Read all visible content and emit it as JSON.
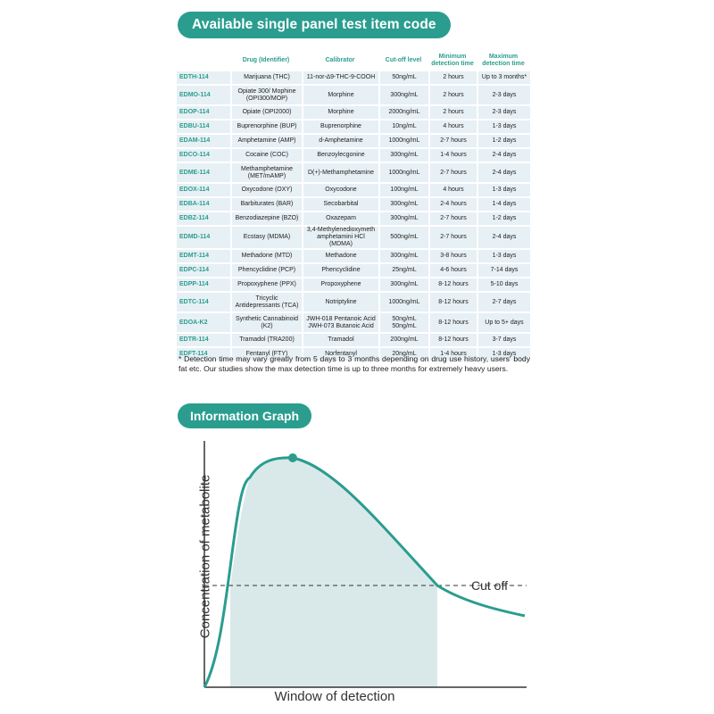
{
  "table_section": {
    "title": "Available single panel test item code",
    "headers": [
      "",
      "Drug (Identifier)",
      "Calibrator",
      "Cut-off level",
      "Minimum detection time",
      "Maximum detection time"
    ],
    "rows": [
      {
        "code": "EDTH-114",
        "drug": "Marijuana (THC)",
        "calibrator": "11-nor-∆9-THC-9-COOH",
        "cutoff": "50ng/mL",
        "min": "2 hours",
        "max": "Up to 3 months*"
      },
      {
        "code": "EDMO-114",
        "drug": "Opiate 300/ Mophine (OPI300/MOP)",
        "calibrator": "Morphine",
        "cutoff": "300ng/mL",
        "min": "2 hours",
        "max": "2-3 days"
      },
      {
        "code": "EDOP-114",
        "drug": "Opiate (OPI2000)",
        "calibrator": "Morphine",
        "cutoff": "2000ng/mL",
        "min": "2 hours",
        "max": "2-3 days"
      },
      {
        "code": "EDBU-114",
        "drug": "Buprenorphine (BUP)",
        "calibrator": "Buprenorphine",
        "cutoff": "10ng/mL",
        "min": "4 hours",
        "max": "1-3 days"
      },
      {
        "code": "EDAM-114",
        "drug": "Amphetamine (AMP)",
        "calibrator": "d-Amphetamine",
        "cutoff": "1000ng/mL",
        "min": "2-7 hours",
        "max": "1-2 days"
      },
      {
        "code": "EDCO-114",
        "drug": "Cocaine (COC)",
        "calibrator": "Benzoylecgonine",
        "cutoff": "300ng/mL",
        "min": "1-4 hours",
        "max": "2-4 days"
      },
      {
        "code": "EDME-114",
        "drug": "Methamphetamine (MET/mAMP)",
        "calibrator": "D(+)-Methamphetamine",
        "cutoff": "1000ng/mL",
        "min": "2-7 hours",
        "max": "2-4 days"
      },
      {
        "code": "EDOX-114",
        "drug": "Oxycodone (OXY)",
        "calibrator": "Oxycodone",
        "cutoff": "100ng/mL",
        "min": "4 hours",
        "max": "1-3 days"
      },
      {
        "code": "EDBA-114",
        "drug": "Barbiturates (BAR)",
        "calibrator": "Secobarbital",
        "cutoff": "300ng/mL",
        "min": "2-4 hours",
        "max": "1-4 days"
      },
      {
        "code": "EDBZ-114",
        "drug": "Benzodiazepine (BZO)",
        "calibrator": "Oxazepam",
        "cutoff": "300ng/mL",
        "min": "2-7 hours",
        "max": "1-2 days"
      },
      {
        "code": "EDMD-114",
        "drug": "Ecstasy (MDMA)",
        "calibrator": "3,4-Methylenedioxymeth amphetamini HCl (MDMA)",
        "cutoff": "500ng/mL",
        "min": "2-7 hours",
        "max": "2-4 days"
      },
      {
        "code": "EDMT-114",
        "drug": "Methadone (MTD)",
        "calibrator": "Methadone",
        "cutoff": "300ng/mL",
        "min": "3-8 hours",
        "max": "1-3 days"
      },
      {
        "code": "EDPC-114",
        "drug": "Phencyclidine (PCP)",
        "calibrator": "Phencyclidine",
        "cutoff": "25ng/mL",
        "min": "4-6 hours",
        "max": "7-14 days"
      },
      {
        "code": "EDPP-114",
        "drug": "Propoxyphene (PPX)",
        "calibrator": "Propoxyphene",
        "cutoff": "300ng/mL",
        "min": "8-12 hours",
        "max": "5-10 days"
      },
      {
        "code": "EDTC-114",
        "drug": "Tricyclic Antidepressants (TCA)",
        "calibrator": "Notriptyline",
        "cutoff": "1000ng/mL",
        "min": "8-12 hours",
        "max": "2-7 days"
      },
      {
        "code": "EDOA-K2",
        "drug": "Synthetic Cannabinoid (K2)",
        "calibrator": "JWH-018 Pentanoic Acid JWH-073 Butanoic Acid",
        "cutoff": "50ng/mL 50ng/mL",
        "min": "8-12 hours",
        "max": "Up to 5+ days"
      },
      {
        "code": "EDTR-114",
        "drug": "Tramadol (TRA200)",
        "calibrator": "Tramadol",
        "cutoff": "200ng/mL",
        "min": "8-12 hours",
        "max": "3-7 days"
      },
      {
        "code": "EDFT-114",
        "drug": "Fentanyl (FTY)",
        "calibrator": "Norfentanyl",
        "cutoff": "20ng/mL",
        "min": "1-4 hours",
        "max": "1-3 days"
      }
    ],
    "footnote": "* Detection time may vary greatly from 5 days to 3 months depending on drug use history, users' body fat etc. Our studies show the max detection time is up to three months for extremely heavy users."
  },
  "graph_section": {
    "title": "Information Graph",
    "ylabel": "Concentration of metabolite",
    "xlabel": "Window of detection",
    "cutoff_label": "Cut off"
  },
  "colors": {
    "accent": "#2a9d8f",
    "row_bg": "#e7f0f4",
    "shade": "#d9e9ea",
    "axis": "#333333"
  }
}
